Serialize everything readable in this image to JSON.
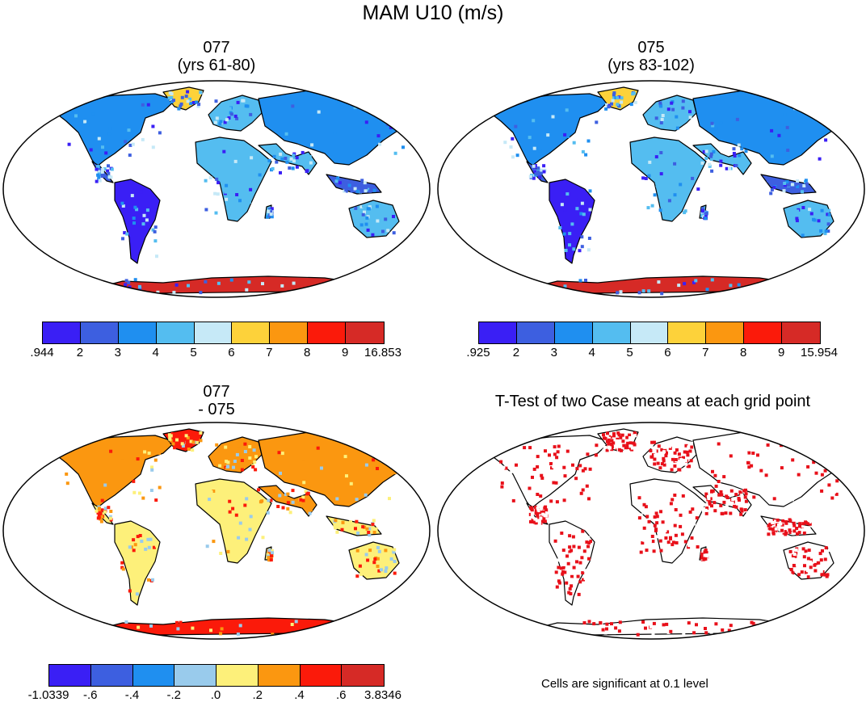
{
  "title": "MAM U10 (m/s)",
  "panels": [
    {
      "id": "p077",
      "title_line1": "077",
      "title_line2": "(yrs 61-80)",
      "colorbar": {
        "colors": [
          "#3a1ff5",
          "#3d5fe0",
          "#1f8ff0",
          "#54bdf0",
          "#c6e9f7",
          "#fdd23a",
          "#fb9710",
          "#fb1a0a",
          "#d62a26"
        ],
        "labels": [
          ".944",
          "2",
          "3",
          "4",
          "5",
          "6",
          "7",
          "8",
          "9",
          "16.853"
        ]
      }
    },
    {
      "id": "p075",
      "title_line1": "075",
      "title_line2": "(yrs 83-102)",
      "colorbar": {
        "colors": [
          "#3a1ff5",
          "#3d5fe0",
          "#1f8ff0",
          "#54bdf0",
          "#c6e9f7",
          "#fdd23a",
          "#fb9710",
          "#fb1a0a",
          "#d62a26"
        ],
        "labels": [
          ".925",
          "2",
          "3",
          "4",
          "5",
          "6",
          "7",
          "8",
          "9",
          "15.954"
        ]
      }
    },
    {
      "id": "pdiff",
      "title_line1": "077",
      "title_line2": "- 075",
      "colorbar": {
        "colors": [
          "#3a1ff5",
          "#3d5fe0",
          "#1f8ff0",
          "#99cbec",
          "#fdf07a",
          "#fb9710",
          "#fb1a0a",
          "#d62a26"
        ],
        "labels": [
          "-1.0339",
          "-.6",
          "-.4",
          "-.2",
          ".0",
          ".2",
          ".4",
          ".6",
          "3.8346"
        ]
      }
    },
    {
      "id": "pttest",
      "title_line1": "T-Test of two Case means at each grid point",
      "note": "Cells are significant at 0.1 level"
    }
  ]
}
